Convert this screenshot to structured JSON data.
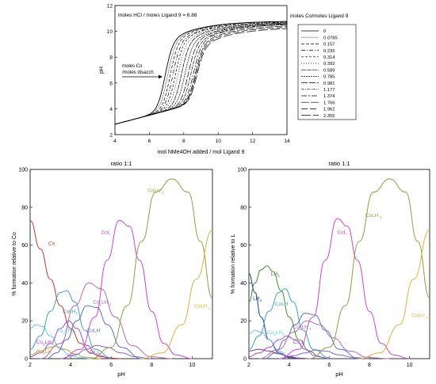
{
  "chart_data": [
    {
      "type": "line",
      "annotation_top": "moles HCl / moles Ligand 9 = 6.88",
      "annotation_arrow": [
        "moles Co",
        "/moles disacch"
      ],
      "legend_title": "moles Co/moles Ligand 9",
      "xlabel": "mol NMe4OH added / mol Ligand 9",
      "ylabel": "pH",
      "xlim": [
        4,
        14
      ],
      "ylim": [
        2,
        12
      ],
      "xticks": [
        "4",
        "6",
        "8",
        "10",
        "12",
        "14"
      ],
      "yticks": [
        "2",
        "4",
        "6",
        "8",
        "10",
        "12"
      ],
      "series_names": [
        "0",
        "0.0785",
        "0.157",
        "0.235",
        "0.314",
        "0.392",
        "0.589",
        "0.785",
        "0.981",
        "1.177",
        "1.374",
        "1.766",
        "1.962",
        "2.355"
      ],
      "curve_params": [
        {
          "midpoint": 6.9,
          "plateau": 10.8
        },
        {
          "midpoint": 7.05,
          "plateau": 10.8
        },
        {
          "midpoint": 7.2,
          "plateau": 10.8
        },
        {
          "midpoint": 7.35,
          "plateau": 10.75
        },
        {
          "midpoint": 7.5,
          "plateau": 10.75
        },
        {
          "midpoint": 7.65,
          "plateau": 10.7
        },
        {
          "midpoint": 7.85,
          "plateau": 10.7
        },
        {
          "midpoint": 8.05,
          "plateau": 10.65
        },
        {
          "midpoint": 8.25,
          "plateau": 10.65
        },
        {
          "midpoint": 8.4,
          "plateau": 10.6
        },
        {
          "midpoint": 8.55,
          "plateau": 10.6
        },
        {
          "midpoint": 8.65,
          "plateau": 10.5
        },
        {
          "midpoint": 8.7,
          "plateau": 10.4
        },
        {
          "midpoint": 8.75,
          "plateau": 10.3
        }
      ]
    },
    {
      "type": "line",
      "title": "ratio 1:1",
      "xlabel": "pH",
      "ylabel": "% formation relative to Co",
      "xlim": [
        2,
        11
      ],
      "ylim": [
        0,
        100
      ],
      "xticks": [
        "2",
        "4",
        "6",
        "8",
        "10"
      ],
      "yticks": [
        "0",
        "20",
        "40",
        "60",
        "80",
        "100"
      ],
      "series": [
        {
          "name": "Co",
          "sub": "",
          "color": "#c0392b",
          "x": [
            2,
            2.5,
            3,
            3.5,
            4,
            4.5,
            5,
            5.5,
            6,
            6.5
          ],
          "y": [
            73,
            58,
            42,
            28,
            16,
            8,
            3,
            1,
            0.3,
            0
          ]
        },
        {
          "name": "Co",
          "sub": "2",
          "name2": "LH",
          "sub2": "3",
          "color": "#5ec8e8",
          "x": [
            2,
            2.3,
            2.6,
            3,
            3.5,
            4,
            4.5,
            5
          ],
          "y": [
            16,
            18,
            17,
            12,
            5,
            1.5,
            0.4,
            0
          ]
        },
        {
          "name": "CoLH",
          "sub": "2",
          "color": "#3aa6b8",
          "x": [
            2,
            2.5,
            3,
            3.5,
            3.8,
            4.2,
            4.7,
            5.2,
            6
          ],
          "y": [
            5,
            12,
            25,
            35,
            36,
            30,
            15,
            5,
            0.5
          ]
        },
        {
          "name": "Co",
          "sub": "2",
          "name2": "LH",
          "sub2": "2",
          "color": "#a44ad2",
          "x": [
            2,
            2.5,
            3,
            3.5,
            3.9,
            4.3,
            4.8,
            5.3,
            6
          ],
          "y": [
            1,
            3,
            8,
            16,
            20,
            16,
            7,
            2,
            0
          ]
        },
        {
          "name": "Co",
          "sub": "2",
          "name2": "LH",
          "sub2": "",
          "color": "#c0a040",
          "x": [
            2,
            2.5,
            3,
            3.3,
            3.7,
            4.2,
            4.7,
            5.5
          ],
          "y": [
            2,
            4,
            6,
            6.5,
            5,
            2.5,
            0.8,
            0
          ]
        },
        {
          "name": "CoLH",
          "sub": "",
          "color": "#5b6fc0",
          "x": [
            2.8,
            3.3,
            3.8,
            4.3,
            4.8,
            5.3,
            5.8,
            6.5,
            7.5
          ],
          "y": [
            0,
            3,
            10,
            20,
            28,
            27,
            18,
            6,
            0
          ]
        },
        {
          "name": "Co",
          "sub": "2",
          "name2": "L",
          "sub2": "",
          "color": "#8860c8",
          "x": [
            3.5,
            4.2,
            4.8,
            5.3,
            5.8,
            6.5,
            7.2,
            8
          ],
          "y": [
            0,
            2,
            5,
            7,
            6,
            3,
            1,
            0
          ]
        },
        {
          "name": "Co",
          "sub": "2",
          "name2": "LH",
          "sub2": "-1",
          "color": "#b06ab0",
          "x": [
            2.5,
            3.5,
            4.2,
            4.9,
            5.5,
            6.2,
            7,
            8,
            9
          ],
          "y": [
            0,
            8,
            28,
            40,
            37,
            22,
            7,
            1,
            0
          ]
        },
        {
          "name": "CoL",
          "sub": "",
          "color": "#cc44cc",
          "x": [
            3.5,
            4.5,
            5.2,
            5.8,
            6.4,
            6.9,
            7.4,
            8,
            8.6,
            9.2,
            10
          ],
          "y": [
            0,
            5,
            22,
            52,
            73,
            70,
            52,
            25,
            8,
            2,
            0
          ]
        },
        {
          "name": "CoLH",
          "sub": "-1",
          "color": "#8fa040",
          "x": [
            5,
            6,
            6.8,
            7.5,
            8.2,
            9,
            9.8,
            10.4,
            11
          ],
          "y": [
            0,
            6,
            28,
            62,
            88,
            95,
            88,
            62,
            32
          ]
        },
        {
          "name": "CoLH",
          "sub": "-2",
          "color": "#e0b040",
          "x": [
            7.5,
            8.5,
            9.5,
            10.2,
            11
          ],
          "y": [
            0,
            3,
            18,
            42,
            68
          ]
        }
      ],
      "labels": [
        {
          "text": "Co",
          "sub": "",
          "x": 2.9,
          "y": 60,
          "color": "#c0392b"
        },
        {
          "text": "Co",
          "sub": "2",
          "text2": "LH",
          "sub2": "3",
          "x": 3.3,
          "y": 14,
          "color": "#5ec8e8"
        },
        {
          "text": "Co",
          "sub": "2",
          "text2": "LH",
          "sub2": "2",
          "x": 2.3,
          "y": 8,
          "color": "#a44ad2"
        },
        {
          "text": "Co",
          "sub": "2",
          "text2": "LH",
          "sub2": "",
          "x": 2.3,
          "y": 3,
          "color": "#c0a040"
        },
        {
          "text": "CoLH",
          "sub": "2",
          "x": 3.6,
          "y": 24,
          "color": "#3aa6b8"
        },
        {
          "text": "CoLH",
          "sub": "",
          "x": 4.8,
          "y": 14,
          "color": "#5b6fc0"
        },
        {
          "text": "Co",
          "sub": "2",
          "text2": "L",
          "sub2": "",
          "x": 4.9,
          "y": 2.5,
          "color": "#8860c8"
        },
        {
          "text": "Co",
          "sub": "2",
          "text2": "LH",
          "sub2": "-1",
          "x": 5.1,
          "y": 29,
          "color": "#b06ab0"
        },
        {
          "text": "CoL",
          "sub": "",
          "x": 5.5,
          "y": 66,
          "color": "#cc44cc"
        },
        {
          "text": "CoLH",
          "sub": "-1",
          "x": 7.8,
          "y": 88,
          "color": "#8fa040"
        },
        {
          "text": "CoLH",
          "sub": "-2",
          "x": 10.1,
          "y": 27,
          "color": "#e0b040"
        }
      ]
    },
    {
      "type": "line",
      "title": "ratio 1:1",
      "xlabel": "pH",
      "ylabel": "% formation relative to L",
      "xlim": [
        2,
        11
      ],
      "ylim": [
        0,
        100
      ],
      "xticks": [
        "2",
        "4",
        "6",
        "8",
        "10"
      ],
      "yticks": [
        "0",
        "20",
        "40",
        "60",
        "80",
        "100"
      ],
      "series": [
        {
          "name": "LH",
          "sub": "4",
          "color": "#2040a0",
          "x": [
            2,
            2.3,
            2.6,
            3,
            3.5,
            4,
            4.5
          ],
          "y": [
            45,
            35,
            22,
            10,
            3,
            0.6,
            0
          ]
        },
        {
          "name": "LH",
          "sub": "3",
          "color": "#4a8a30",
          "x": [
            2,
            2.3,
            2.6,
            2.9,
            3.2,
            3.6,
            4,
            4.5,
            5,
            5.5,
            6
          ],
          "y": [
            30,
            40,
            47,
            49,
            46,
            36,
            22,
            10,
            4,
            1,
            0
          ]
        },
        {
          "name": "Co",
          "sub": "2",
          "name2": "LH",
          "sub2": "3",
          "color": "#5ec8e8",
          "x": [
            2,
            2.3,
            2.6,
            3,
            3.5,
            4,
            4.5,
            5
          ],
          "y": [
            13,
            15,
            14,
            10,
            4,
            1.2,
            0.3,
            0
          ]
        },
        {
          "name": "CoLH",
          "sub": "2",
          "color": "#3aa6b8",
          "x": [
            2,
            2.5,
            3,
            3.5,
            3.8,
            4.2,
            4.7,
            5.2,
            6
          ],
          "y": [
            5,
            12,
            25,
            35,
            37,
            30,
            15,
            5,
            0.5
          ]
        },
        {
          "name": "Co",
          "sub": "2",
          "name2": "LH",
          "sub2": "2",
          "color": "#a44ad2",
          "x": [
            2,
            2.5,
            3,
            3.5,
            3.9,
            4.3,
            4.8,
            5.3,
            6
          ],
          "y": [
            1,
            3,
            6,
            10,
            12,
            10,
            5,
            1.5,
            0
          ]
        },
        {
          "name": "CoLH",
          "sub": "",
          "color": "#5b6fc0",
          "x": [
            2.8,
            3.3,
            3.8,
            4.3,
            4.8,
            5.3,
            5.8,
            6.5,
            7.5
          ],
          "y": [
            0,
            3,
            10,
            18,
            24,
            23,
            15,
            5,
            0
          ]
        },
        {
          "name": "Co",
          "sub": "2",
          "name2": "L",
          "sub2": "",
          "color": "#8860c8",
          "x": [
            3.5,
            4.2,
            4.8,
            5.3,
            5.8,
            6.5,
            7.2,
            8
          ],
          "y": [
            0,
            1.5,
            3,
            4.5,
            4,
            2,
            0.6,
            0
          ]
        },
        {
          "name": "Co",
          "sub": "2",
          "name2": "LH",
          "sub2": "-1",
          "color": "#b06ab0",
          "x": [
            2.5,
            3.5,
            4.2,
            4.9,
            5.5,
            6.2,
            7,
            8,
            9
          ],
          "y": [
            0,
            5,
            14,
            20,
            18,
            11,
            4,
            0.5,
            0
          ]
        },
        {
          "name": "LH",
          "sub": "2",
          "color": "#8a3a8a",
          "x": [
            2,
            2.5,
            3,
            3.5,
            4,
            4.5,
            5
          ],
          "y": [
            4,
            5,
            4,
            2.5,
            1,
            0.3,
            0
          ]
        },
        {
          "name": "CoL",
          "sub": "",
          "color": "#cc44cc",
          "x": [
            3.5,
            4.5,
            5.2,
            5.8,
            6.4,
            6.9,
            7.4,
            8,
            8.6,
            9.2,
            10
          ],
          "y": [
            0,
            5,
            22,
            52,
            74,
            70,
            52,
            25,
            8,
            2,
            0
          ]
        },
        {
          "name": "CoLH",
          "sub": "-1",
          "color": "#8fa040",
          "x": [
            5,
            6,
            6.8,
            7.5,
            8.2,
            9,
            9.8,
            10.4,
            11
          ],
          "y": [
            0,
            6,
            28,
            62,
            88,
            95,
            88,
            62,
            32
          ]
        },
        {
          "name": "CoLH",
          "sub": "-2",
          "color": "#e0b040",
          "x": [
            7.5,
            8.5,
            9.5,
            10.2,
            11
          ],
          "y": [
            0,
            3,
            18,
            42,
            68
          ]
        }
      ],
      "labels": [
        {
          "text": "LH",
          "sub": "4",
          "x": 2.2,
          "y": 31,
          "color": "#2040a0"
        },
        {
          "text": "LH",
          "sub": "3",
          "x": 3.1,
          "y": 44,
          "color": "#4a8a30"
        },
        {
          "text": "CoLH",
          "sub": "",
          "x": 3.3,
          "y": 28,
          "color": "#3aa6b8"
        },
        {
          "text": "Co",
          "sub": "2",
          "text2": "LH",
          "sub2": "3",
          "x": 2.9,
          "y": 13,
          "color": "#5ec8e8"
        },
        {
          "text": "Co",
          "sub": "2",
          "text2": "LH",
          "sub2": "-1",
          "x": 4.2,
          "y": 16,
          "color": "#b06ab0"
        },
        {
          "text": "Co",
          "sub": "2",
          "text2": "L",
          "sub2": "",
          "x": 4.2,
          "y": 8,
          "color": "#8860c8"
        },
        {
          "text": "CoL",
          "sub": "",
          "x": 6.4,
          "y": 66,
          "color": "#cc44cc"
        },
        {
          "text": "CoLH",
          "sub": "-1",
          "x": 7.8,
          "y": 75,
          "color": "#8fa040"
        },
        {
          "text": "CoLH",
          "sub": "-2",
          "x": 10.1,
          "y": 22,
          "color": "#e0b040"
        }
      ]
    }
  ]
}
